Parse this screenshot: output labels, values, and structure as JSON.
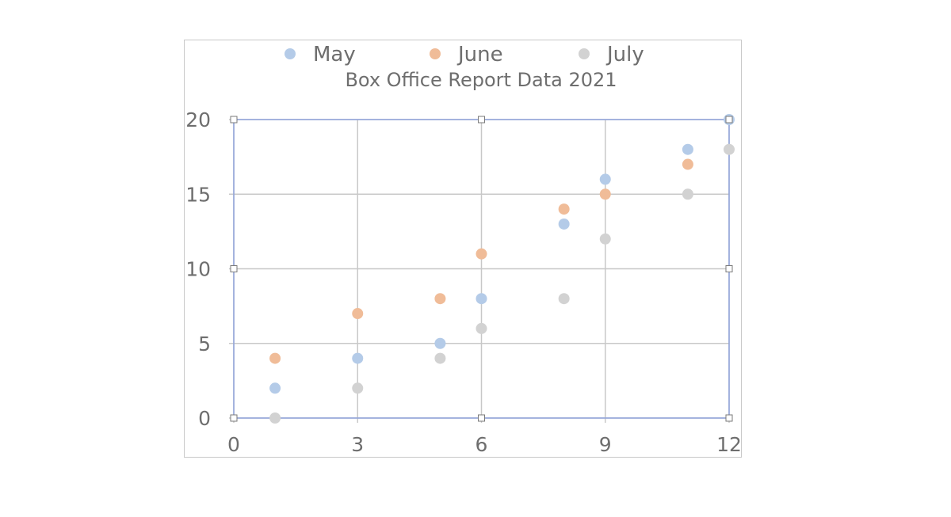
{
  "chart_data": {
    "type": "scatter",
    "title": "Box Office Report Data 2021",
    "xlabel": "",
    "ylabel": "",
    "xlim": [
      0,
      12
    ],
    "ylim": [
      0,
      20
    ],
    "x_ticks": [
      0,
      3,
      6,
      9,
      12
    ],
    "y_ticks": [
      0,
      5,
      10,
      15,
      20
    ],
    "grid": true,
    "legend_position": "top",
    "series": [
      {
        "name": "May",
        "color": "#b4cbe8",
        "points": [
          [
            1,
            2
          ],
          [
            3,
            4
          ],
          [
            5,
            5
          ],
          [
            6,
            8
          ],
          [
            8,
            13
          ],
          [
            9,
            16
          ],
          [
            11,
            18
          ],
          [
            12,
            20
          ]
        ]
      },
      {
        "name": "June",
        "color": "#f0bc98",
        "points": [
          [
            1,
            4
          ],
          [
            3,
            7
          ],
          [
            5,
            8
          ],
          [
            6,
            11
          ],
          [
            8,
            14
          ],
          [
            9,
            15
          ],
          [
            11,
            17
          ]
        ]
      },
      {
        "name": "July",
        "color": "#d2d2d2",
        "points": [
          [
            1,
            0
          ],
          [
            3,
            2
          ],
          [
            5,
            4
          ],
          [
            6,
            6
          ],
          [
            8,
            8
          ],
          [
            9,
            12
          ],
          [
            11,
            15
          ],
          [
            12,
            18
          ]
        ]
      }
    ]
  },
  "legend": {
    "items": [
      "May",
      "June",
      "July"
    ]
  },
  "colors": {
    "plot_border": "#8fa3dc",
    "grid": "#c8c8c8",
    "text": "#6e6e6e"
  }
}
